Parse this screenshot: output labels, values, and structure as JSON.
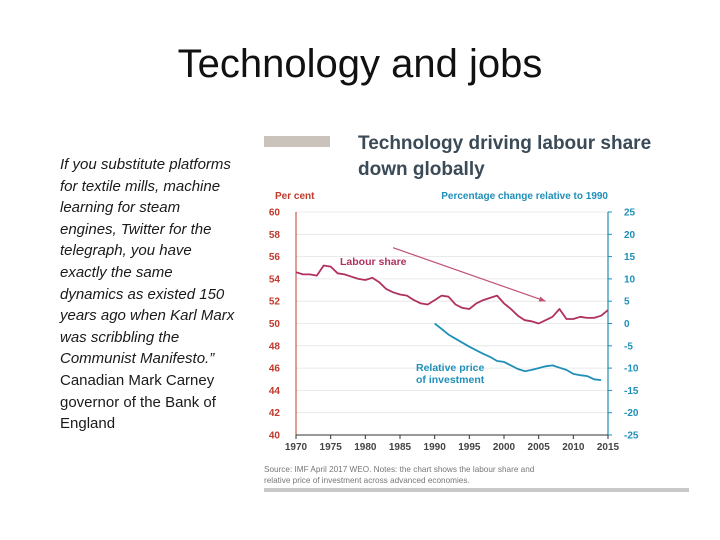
{
  "slide": {
    "title": "Technology and jobs",
    "quote_italic": "If you substitute platforms for textile mills, machine learning for steam engines, Twitter for the telegraph, you have exactly the same dynamics as existed 150 years ago when Karl Marx was scribbling the Communist Manifesto.”",
    "quote_attribution": "Canadian Mark Carney governor of the Bank of England"
  },
  "colors": {
    "title_bar": "#c9c3bc",
    "chart_title": "#3a4a57",
    "left_axis": "#c0392b",
    "right_axis": "#1f8fb8",
    "labour_line": "#b03060",
    "investment_line": "#1f8fb8",
    "grid": "#e4e4e4",
    "arrow": "#c05070",
    "footer_rule": "#c8c8c8"
  },
  "chart_data": {
    "type": "line",
    "title": "Technology driving labour share down globally",
    "left_axis_label": "Per cent",
    "right_axis_label": "Percentage change relative to 1990",
    "x_ticks": [
      1970,
      1975,
      1980,
      1985,
      1990,
      1995,
      2000,
      2005,
      2010,
      2015
    ],
    "xlim": [
      1970,
      2015
    ],
    "left_ticks": [
      60,
      58,
      56,
      54,
      52,
      50,
      48,
      46,
      44,
      42,
      40
    ],
    "left_ylim": [
      40,
      60
    ],
    "right_ticks": [
      25,
      20,
      15,
      10,
      5,
      0,
      -5,
      -10,
      -15,
      -20,
      -25
    ],
    "right_ylim": [
      -25,
      25
    ],
    "series": [
      {
        "name": "Labour share",
        "axis": "left",
        "x": [
          1970,
          1971,
          1972,
          1973,
          1974,
          1975,
          1976,
          1977,
          1978,
          1979,
          1980,
          1981,
          1982,
          1983,
          1984,
          1985,
          1986,
          1987,
          1988,
          1989,
          1990,
          1991,
          1992,
          1993,
          1994,
          1995,
          1996,
          1997,
          1998,
          1999,
          2000,
          2001,
          2002,
          2003,
          2004,
          2005,
          2006,
          2007,
          2008,
          2009,
          2010,
          2011,
          2012,
          2013,
          2014,
          2015
        ],
        "values": [
          54.6,
          54.4,
          54.4,
          54.3,
          55.2,
          55.1,
          54.5,
          54.4,
          54.2,
          54.0,
          53.9,
          54.1,
          53.7,
          53.1,
          52.8,
          52.6,
          52.5,
          52.1,
          51.8,
          51.7,
          52.1,
          52.5,
          52.4,
          51.7,
          51.4,
          51.3,
          51.8,
          52.1,
          52.3,
          52.5,
          51.8,
          51.3,
          50.7,
          50.3,
          50.2,
          50.0,
          50.3,
          50.6,
          51.3,
          50.4,
          50.4,
          50.6,
          50.5,
          50.5,
          50.7,
          51.2
        ]
      },
      {
        "name": "Relative price of investment",
        "axis": "right",
        "x": [
          1990,
          1991,
          1992,
          1993,
          1994,
          1995,
          1996,
          1997,
          1998,
          1999,
          2000,
          2001,
          2002,
          2003,
          2004,
          2005,
          2006,
          2007,
          2008,
          2009,
          2010,
          2011,
          2012,
          2013,
          2014
        ],
        "values": [
          0,
          -1.2,
          -2.5,
          -3.4,
          -4.3,
          -5.2,
          -6.0,
          -6.8,
          -7.5,
          -8.4,
          -8.6,
          -9.4,
          -10.2,
          -10.7,
          -10.4,
          -10.0,
          -9.6,
          -9.4,
          -9.9,
          -10.4,
          -11.3,
          -11.6,
          -11.8,
          -12.5,
          -12.7
        ]
      }
    ],
    "annotations": [
      {
        "text": "Labour share",
        "series": "Labour share"
      },
      {
        "text": "Relative price",
        "series": "Relative price of investment"
      },
      {
        "text": "of investment",
        "series": "Relative price of investment"
      }
    ],
    "arrow": {
      "from": [
        1984,
        56.8
      ],
      "to": [
        2006,
        52.0
      ]
    },
    "source": "Source:  IMF April 2017 WEO.   Notes:  the chart shows the labour share and",
    "source_line2": "relative price of investment across advanced economies."
  }
}
